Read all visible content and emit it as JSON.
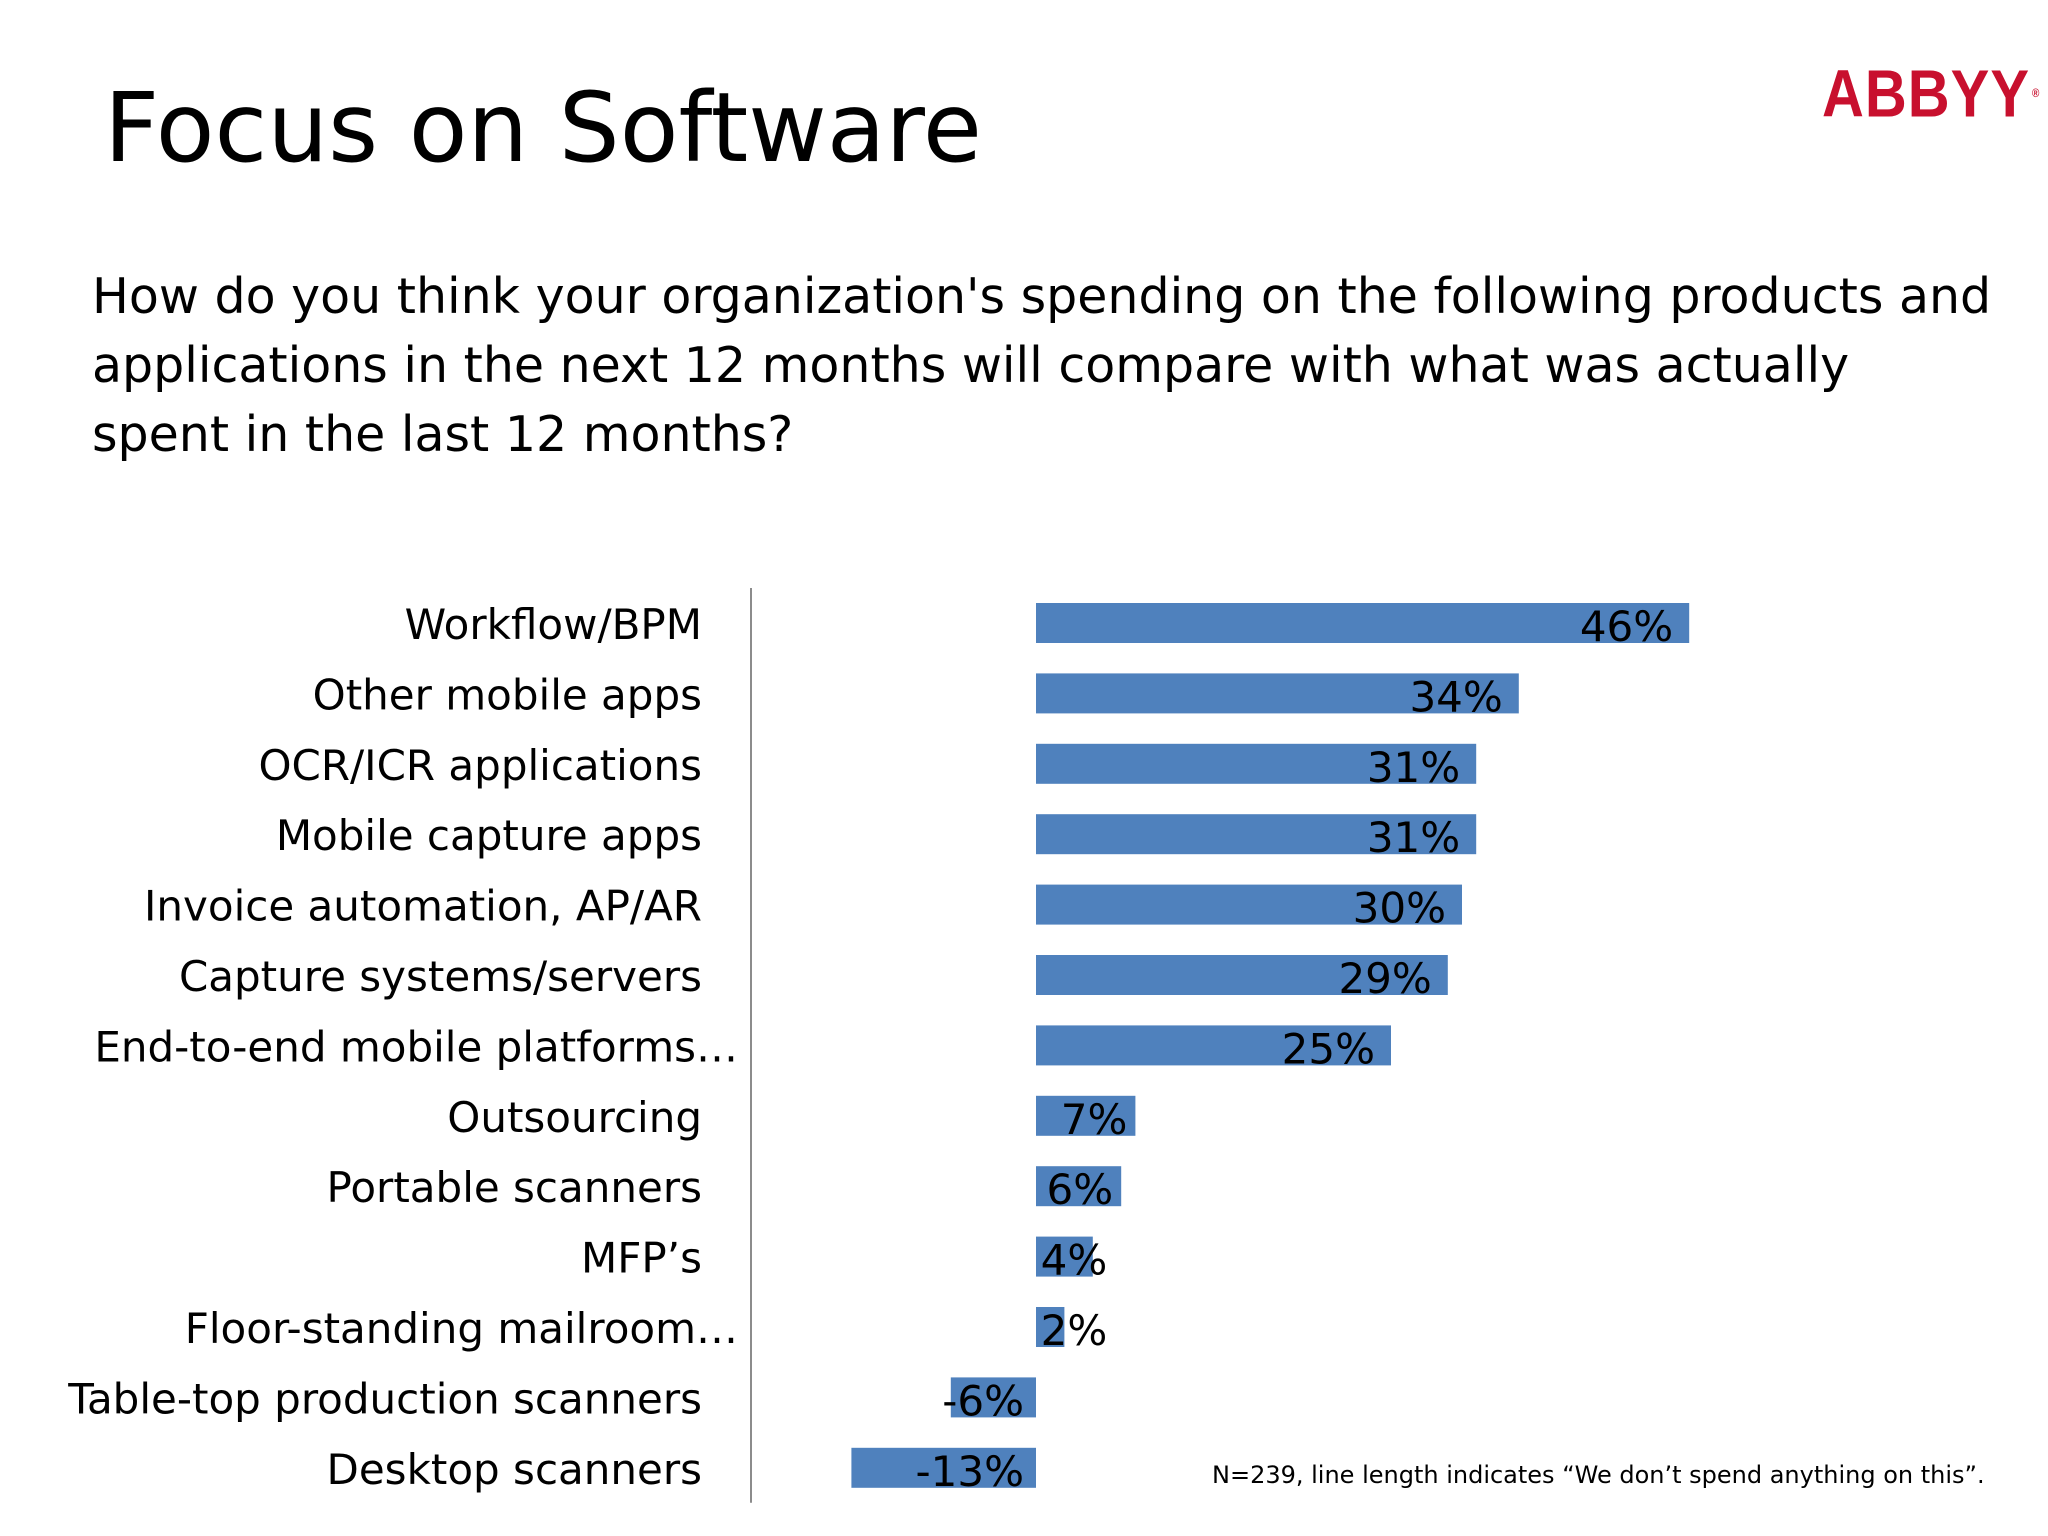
{
  "slide": {
    "title": "Focus on Software",
    "logo": "ABBYY",
    "question": "How do you think your organization's spending on the following products and applications in the next 12 months will compare with what was actually spent in the last 12 months?",
    "footnote": "N=239, line length indicates “We don’t spend anything on this”."
  },
  "colors": {
    "bar": "#4f81bd",
    "axis": "#8c8c8c",
    "logo": "#c8102e"
  },
  "chart_data": {
    "type": "bar",
    "orientation": "horizontal",
    "title": "",
    "xlabel": "",
    "ylabel": "",
    "xlim": [
      -19,
      47
    ],
    "grid": false,
    "legend": "none",
    "categories": [
      "Workflow/BPM",
      "Other mobile apps",
      "OCR/ICR applications",
      "Mobile capture apps",
      "Invoice automation, AP/AR",
      "Capture systems/servers",
      "End-to-end mobile platforms…",
      "Outsourcing",
      "Portable scanners",
      "MFP’s",
      "Floor-standing mailroom…",
      "Table-top production scanners",
      "Desktop scanners"
    ],
    "values": [
      46,
      34,
      31,
      31,
      30,
      29,
      25,
      7,
      6,
      4,
      2,
      -6,
      -13
    ],
    "data_labels": [
      "46%",
      "34%",
      "31%",
      "31%",
      "30%",
      "29%",
      "25%",
      "7%",
      "6%",
      "4%",
      "2%",
      "-6%",
      "-13%"
    ]
  }
}
